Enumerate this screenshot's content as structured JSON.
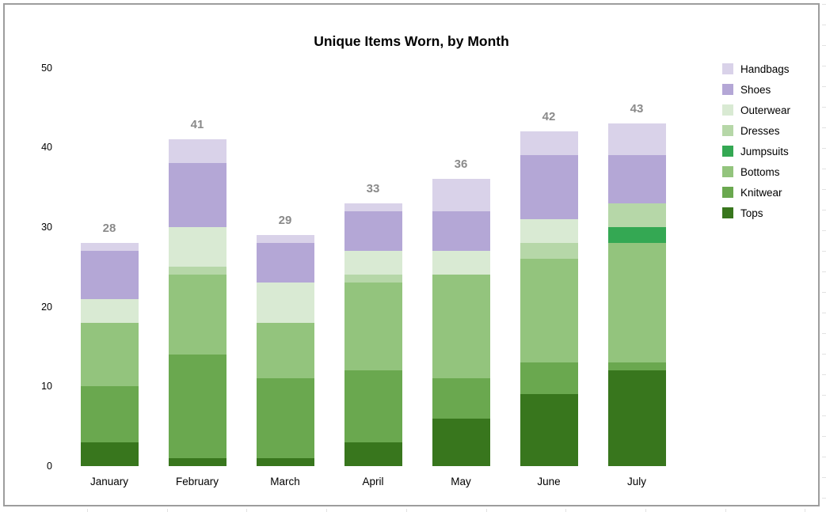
{
  "chart_data": {
    "type": "bar",
    "stacked": true,
    "title": "Unique Items Worn, by Month",
    "categories": [
      "January",
      "February",
      "March",
      "April",
      "May",
      "June",
      "July"
    ],
    "series": [
      {
        "name": "Tops",
        "color": "#38761d",
        "values": [
          3,
          1,
          1,
          3,
          6,
          9,
          12
        ]
      },
      {
        "name": "Knitwear",
        "color": "#6aa84f",
        "values": [
          7,
          13,
          10,
          9,
          5,
          4,
          1
        ]
      },
      {
        "name": "Bottoms",
        "color": "#93c47d",
        "values": [
          8,
          10,
          7,
          11,
          13,
          13,
          15
        ]
      },
      {
        "name": "Jumpsuits",
        "color": "#34a853",
        "values": [
          0,
          0,
          0,
          0,
          0,
          0,
          2
        ]
      },
      {
        "name": "Dresses",
        "color": "#b6d7a8",
        "values": [
          0,
          1,
          0,
          1,
          0,
          2,
          3
        ]
      },
      {
        "name": "Outerwear",
        "color": "#d9ead3",
        "values": [
          3,
          5,
          5,
          3,
          3,
          3,
          0
        ]
      },
      {
        "name": "Shoes",
        "color": "#b4a7d6",
        "values": [
          6,
          8,
          5,
          5,
          5,
          8,
          6
        ]
      },
      {
        "name": "Handbags",
        "color": "#d9d2e9",
        "values": [
          1,
          3,
          1,
          1,
          4,
          3,
          4
        ]
      }
    ],
    "totals": [
      28,
      41,
      29,
      33,
      36,
      42,
      43
    ],
    "y_axis": {
      "min": 0,
      "max": 50,
      "ticks": [
        0,
        10,
        20,
        30,
        40,
        50
      ]
    },
    "xlabel": "",
    "ylabel": "",
    "grid": false,
    "legend": {
      "position": "right",
      "order_top_to_bottom": [
        "Handbags",
        "Shoes",
        "Outerwear",
        "Dresses",
        "Jumpsuits",
        "Bottoms",
        "Knitwear",
        "Tops"
      ]
    },
    "total_label_color": "#8a8a8a"
  }
}
